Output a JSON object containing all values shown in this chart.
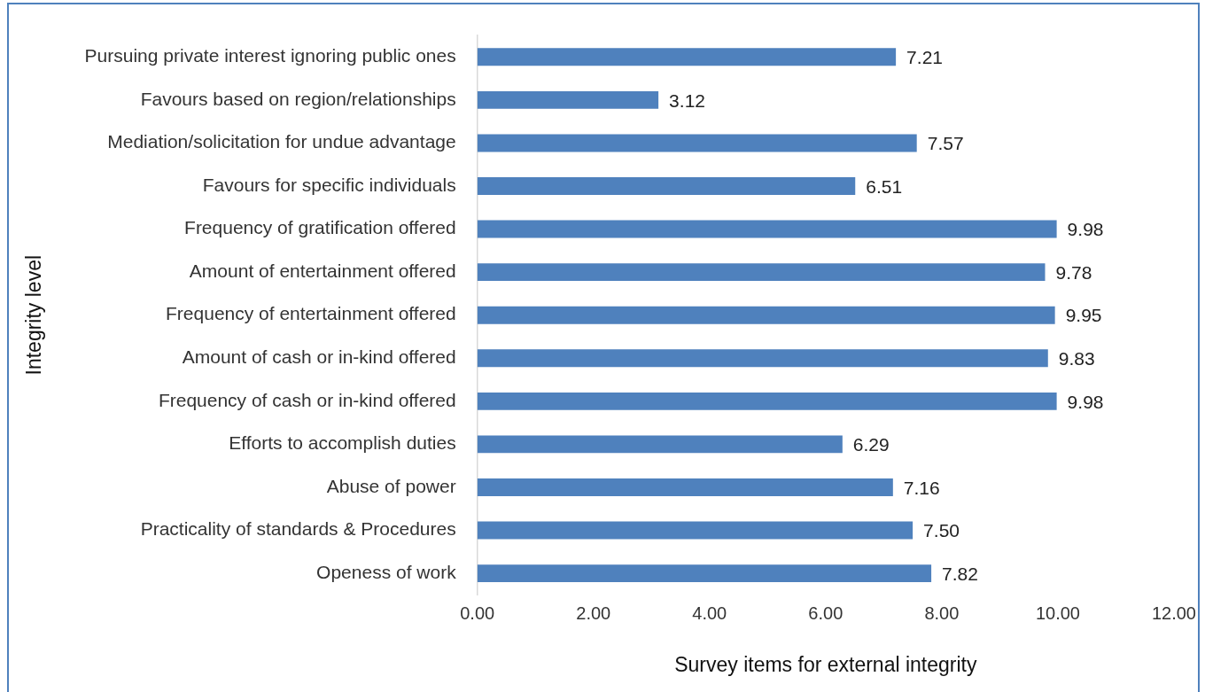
{
  "chart_data": {
    "type": "bar",
    "orientation": "horizontal",
    "xlabel": "Survey items for external integrity",
    "ylabel": "Integrity level",
    "categories": [
      "Pursuing private interest ignoring public ones",
      "Favours based on region/relationships",
      "Mediation/solicitation for undue advantage",
      "Favours for specific individuals",
      "Frequency of gratification offered",
      "Amount of entertainment offered",
      "Frequency of entertainment offered",
      "Amount of cash or in-kind offered",
      "Frequency of cash or in-kind offered",
      "Efforts to accomplish duties",
      "Abuse of power",
      "Practicality of standards & Procedures",
      "Openess of work"
    ],
    "values": [
      7.21,
      3.12,
      7.57,
      6.51,
      9.98,
      9.78,
      9.95,
      9.83,
      9.98,
      6.29,
      7.16,
      7.5,
      7.82
    ],
    "value_labels": [
      "7.21",
      "3.12",
      "7.57",
      "6.51",
      "9.98",
      "9.78",
      "9.95",
      "9.83",
      "9.98",
      "6.29",
      "7.16",
      "7.50",
      "7.82"
    ],
    "color": "#4f81bd",
    "xlim": [
      0,
      12
    ],
    "xticks": [
      {
        "value": 0,
        "label": "0.00"
      },
      {
        "value": 2,
        "label": "2.00"
      },
      {
        "value": 4,
        "label": "4.00"
      },
      {
        "value": 6,
        "label": "6.00"
      },
      {
        "value": 8,
        "label": "8.00"
      },
      {
        "value": 10,
        "label": "10.00"
      },
      {
        "value": 12,
        "label": "12.00"
      }
    ],
    "grid": false,
    "legend": false
  }
}
